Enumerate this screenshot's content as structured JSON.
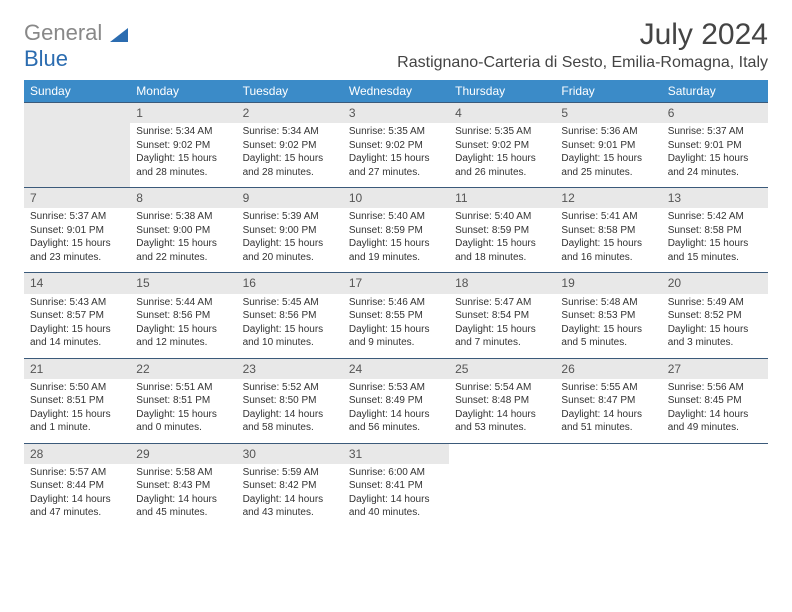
{
  "logo": {
    "text_gray": "General",
    "text_blue": "Blue"
  },
  "header": {
    "month_title": "July 2024",
    "location": "Rastignano-Carteria di Sesto, Emilia-Romagna, Italy"
  },
  "day_headers": [
    "Sunday",
    "Monday",
    "Tuesday",
    "Wednesday",
    "Thursday",
    "Friday",
    "Saturday"
  ],
  "colors": {
    "header_bg": "#3b8bc8",
    "header_text": "#ffffff",
    "border": "#3b5a7a",
    "shade": "#e8e8e8",
    "text": "#333333"
  },
  "weeks": [
    [
      {
        "day": "",
        "lines": []
      },
      {
        "day": "1",
        "lines": [
          "Sunrise: 5:34 AM",
          "Sunset: 9:02 PM",
          "Daylight: 15 hours and 28 minutes."
        ]
      },
      {
        "day": "2",
        "lines": [
          "Sunrise: 5:34 AM",
          "Sunset: 9:02 PM",
          "Daylight: 15 hours and 28 minutes."
        ]
      },
      {
        "day": "3",
        "lines": [
          "Sunrise: 5:35 AM",
          "Sunset: 9:02 PM",
          "Daylight: 15 hours and 27 minutes."
        ]
      },
      {
        "day": "4",
        "lines": [
          "Sunrise: 5:35 AM",
          "Sunset: 9:02 PM",
          "Daylight: 15 hours and 26 minutes."
        ]
      },
      {
        "day": "5",
        "lines": [
          "Sunrise: 5:36 AM",
          "Sunset: 9:01 PM",
          "Daylight: 15 hours and 25 minutes."
        ]
      },
      {
        "day": "6",
        "lines": [
          "Sunrise: 5:37 AM",
          "Sunset: 9:01 PM",
          "Daylight: 15 hours and 24 minutes."
        ]
      }
    ],
    [
      {
        "day": "7",
        "lines": [
          "Sunrise: 5:37 AM",
          "Sunset: 9:01 PM",
          "Daylight: 15 hours and 23 minutes."
        ]
      },
      {
        "day": "8",
        "lines": [
          "Sunrise: 5:38 AM",
          "Sunset: 9:00 PM",
          "Daylight: 15 hours and 22 minutes."
        ]
      },
      {
        "day": "9",
        "lines": [
          "Sunrise: 5:39 AM",
          "Sunset: 9:00 PM",
          "Daylight: 15 hours and 20 minutes."
        ]
      },
      {
        "day": "10",
        "lines": [
          "Sunrise: 5:40 AM",
          "Sunset: 8:59 PM",
          "Daylight: 15 hours and 19 minutes."
        ]
      },
      {
        "day": "11",
        "lines": [
          "Sunrise: 5:40 AM",
          "Sunset: 8:59 PM",
          "Daylight: 15 hours and 18 minutes."
        ]
      },
      {
        "day": "12",
        "lines": [
          "Sunrise: 5:41 AM",
          "Sunset: 8:58 PM",
          "Daylight: 15 hours and 16 minutes."
        ]
      },
      {
        "day": "13",
        "lines": [
          "Sunrise: 5:42 AM",
          "Sunset: 8:58 PM",
          "Daylight: 15 hours and 15 minutes."
        ]
      }
    ],
    [
      {
        "day": "14",
        "lines": [
          "Sunrise: 5:43 AM",
          "Sunset: 8:57 PM",
          "Daylight: 15 hours and 14 minutes."
        ]
      },
      {
        "day": "15",
        "lines": [
          "Sunrise: 5:44 AM",
          "Sunset: 8:56 PM",
          "Daylight: 15 hours and 12 minutes."
        ]
      },
      {
        "day": "16",
        "lines": [
          "Sunrise: 5:45 AM",
          "Sunset: 8:56 PM",
          "Daylight: 15 hours and 10 minutes."
        ]
      },
      {
        "day": "17",
        "lines": [
          "Sunrise: 5:46 AM",
          "Sunset: 8:55 PM",
          "Daylight: 15 hours and 9 minutes."
        ]
      },
      {
        "day": "18",
        "lines": [
          "Sunrise: 5:47 AM",
          "Sunset: 8:54 PM",
          "Daylight: 15 hours and 7 minutes."
        ]
      },
      {
        "day": "19",
        "lines": [
          "Sunrise: 5:48 AM",
          "Sunset: 8:53 PM",
          "Daylight: 15 hours and 5 minutes."
        ]
      },
      {
        "day": "20",
        "lines": [
          "Sunrise: 5:49 AM",
          "Sunset: 8:52 PM",
          "Daylight: 15 hours and 3 minutes."
        ]
      }
    ],
    [
      {
        "day": "21",
        "lines": [
          "Sunrise: 5:50 AM",
          "Sunset: 8:51 PM",
          "Daylight: 15 hours and 1 minute."
        ]
      },
      {
        "day": "22",
        "lines": [
          "Sunrise: 5:51 AM",
          "Sunset: 8:51 PM",
          "Daylight: 15 hours and 0 minutes."
        ]
      },
      {
        "day": "23",
        "lines": [
          "Sunrise: 5:52 AM",
          "Sunset: 8:50 PM",
          "Daylight: 14 hours and 58 minutes."
        ]
      },
      {
        "day": "24",
        "lines": [
          "Sunrise: 5:53 AM",
          "Sunset: 8:49 PM",
          "Daylight: 14 hours and 56 minutes."
        ]
      },
      {
        "day": "25",
        "lines": [
          "Sunrise: 5:54 AM",
          "Sunset: 8:48 PM",
          "Daylight: 14 hours and 53 minutes."
        ]
      },
      {
        "day": "26",
        "lines": [
          "Sunrise: 5:55 AM",
          "Sunset: 8:47 PM",
          "Daylight: 14 hours and 51 minutes."
        ]
      },
      {
        "day": "27",
        "lines": [
          "Sunrise: 5:56 AM",
          "Sunset: 8:45 PM",
          "Daylight: 14 hours and 49 minutes."
        ]
      }
    ],
    [
      {
        "day": "28",
        "lines": [
          "Sunrise: 5:57 AM",
          "Sunset: 8:44 PM",
          "Daylight: 14 hours and 47 minutes."
        ]
      },
      {
        "day": "29",
        "lines": [
          "Sunrise: 5:58 AM",
          "Sunset: 8:43 PM",
          "Daylight: 14 hours and 45 minutes."
        ]
      },
      {
        "day": "30",
        "lines": [
          "Sunrise: 5:59 AM",
          "Sunset: 8:42 PM",
          "Daylight: 14 hours and 43 minutes."
        ]
      },
      {
        "day": "31",
        "lines": [
          "Sunrise: 6:00 AM",
          "Sunset: 8:41 PM",
          "Daylight: 14 hours and 40 minutes."
        ]
      },
      {
        "day": "",
        "lines": []
      },
      {
        "day": "",
        "lines": []
      },
      {
        "day": "",
        "lines": []
      }
    ]
  ]
}
